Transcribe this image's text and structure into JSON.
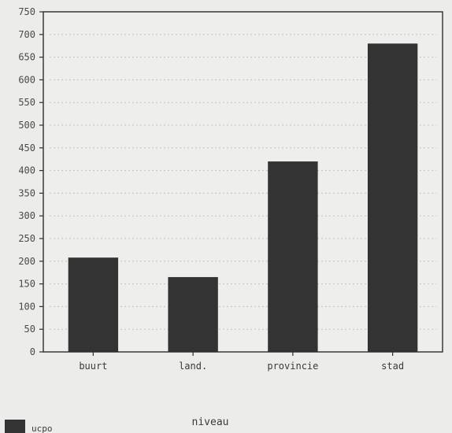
{
  "chart_data": {
    "type": "bar",
    "categories": [
      "buurt",
      "land.",
      "provincie",
      "stad"
    ],
    "series": [
      {
        "name": "ucpo",
        "values": [
          208,
          165,
          420,
          680
        ]
      }
    ],
    "xlabel": "niveau",
    "ylabel": "",
    "ylim": [
      0,
      750
    ],
    "yticks": [
      0,
      50,
      100,
      150,
      200,
      250,
      300,
      350,
      400,
      450,
      500,
      550,
      600,
      650,
      700,
      750
    ],
    "grid": true,
    "legend_position": "bottom-left",
    "bar_color": "#333333"
  }
}
